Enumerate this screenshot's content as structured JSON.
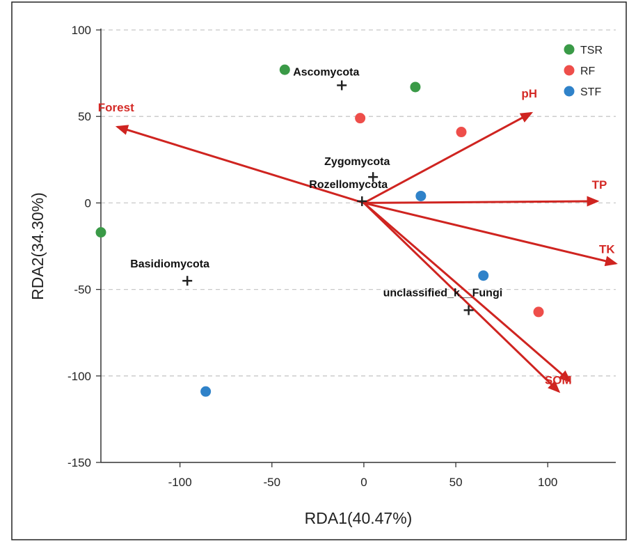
{
  "chart_data": {
    "type": "scatter",
    "title": "",
    "xlabel": "RDA1(40.47%)",
    "ylabel": "RDA2(34.30%)",
    "xlim": [
      -143,
      137
    ],
    "ylim": [
      -150,
      100
    ],
    "x_ticks": [
      -100,
      -50,
      0,
      50,
      100
    ],
    "y_ticks": [
      -150,
      -100,
      -50,
      0,
      50,
      100
    ],
    "grid": "horizontal dashed",
    "legend_position": "top-right",
    "colors": {
      "TSR": "#3a9a47",
      "RF": "#ee4e4a",
      "STF": "#2f82c9",
      "arrow": "#cf2420",
      "cross": "#222222"
    },
    "series": [
      {
        "name": "TSR",
        "points": [
          {
            "x": -143,
            "y": -17
          },
          {
            "x": -43,
            "y": 77
          },
          {
            "x": 28,
            "y": 67
          }
        ]
      },
      {
        "name": "RF",
        "points": [
          {
            "x": -2,
            "y": 49
          },
          {
            "x": 53,
            "y": 41
          },
          {
            "x": 95,
            "y": -63
          }
        ]
      },
      {
        "name": "STF",
        "points": [
          {
            "x": 31,
            "y": 4
          },
          {
            "x": 65,
            "y": -42
          },
          {
            "x": -86,
            "y": -109
          }
        ]
      }
    ],
    "taxa": [
      {
        "name": "Ascomycota",
        "x": -12,
        "y": 68
      },
      {
        "name": "Zygomycota",
        "x": 5,
        "y": 15
      },
      {
        "name": "Rozellomycota",
        "x": -1,
        "y": 1
      },
      {
        "name": "Basidiomycota",
        "x": -96,
        "y": -45
      },
      {
        "name": "unclassified_k__Fungi",
        "x": 57,
        "y": -62
      }
    ],
    "env_vectors": [
      {
        "name": "Forest",
        "x": -134,
        "y": 44
      },
      {
        "name": "pH",
        "x": 91,
        "y": 52
      },
      {
        "name": "TP",
        "x": 127,
        "y": 1
      },
      {
        "name": "TK",
        "x": 137,
        "y": -35
      },
      {
        "name": "SOM",
        "x": 112,
        "y": -103
      },
      {
        "name": "",
        "x": 106,
        "y": -109
      }
    ]
  }
}
